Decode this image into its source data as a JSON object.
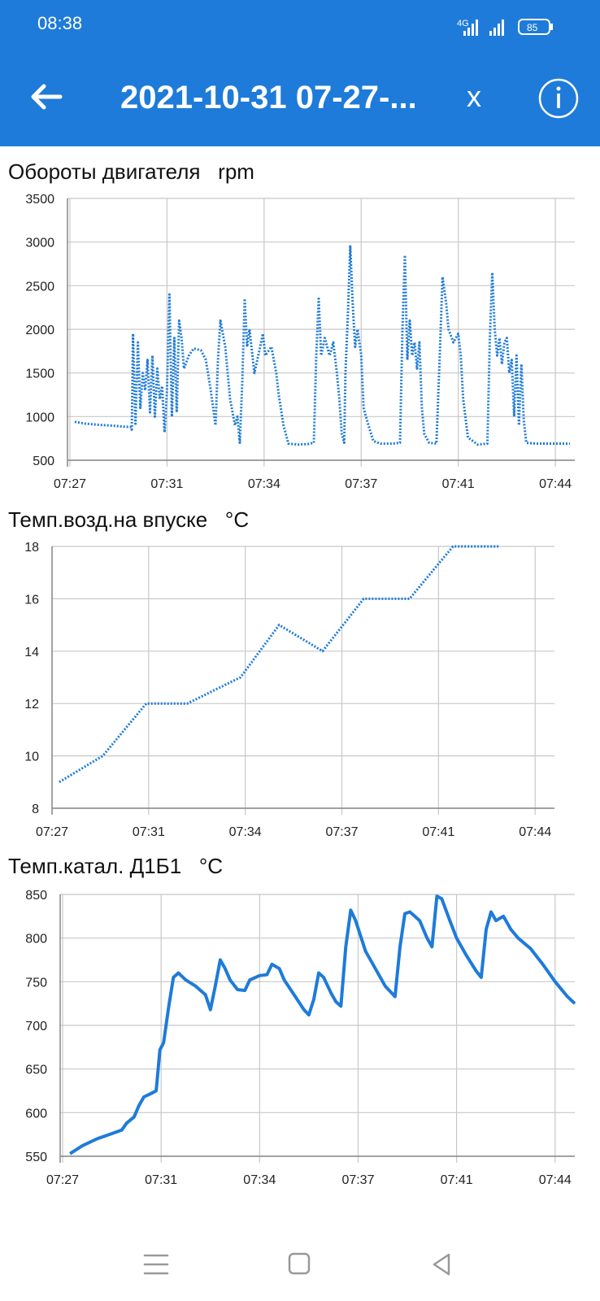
{
  "status": {
    "time": "08:38",
    "battery": "85",
    "network": "4G"
  },
  "header": {
    "title": "2021-10-31 07-27-...",
    "close_label": "x",
    "back_icon": "arrow-left-icon",
    "info_icon": "info-icon"
  },
  "colors": {
    "accent": "#1e7bd9",
    "series": "#1e7bd9",
    "grid": "#c8c8c8"
  },
  "chart_data": [
    {
      "type": "line",
      "title": "Обороты двигателя   rpm",
      "x_ticks": [
        "07:27",
        "07:31",
        "07:34",
        "07:37",
        "07:41",
        "07:44"
      ],
      "x_tick_minutes": [
        0,
        4,
        8,
        12,
        16,
        20
      ],
      "xlim_minutes": [
        -0.1,
        20.8
      ],
      "y_ticks": [
        500,
        1000,
        1500,
        2000,
        2500,
        3000,
        3500
      ],
      "ylim": [
        500,
        3500
      ],
      "grid": true,
      "style": "dotted",
      "series": [
        {
          "points": [
            [
              0.2,
              940
            ],
            [
              0.6,
              920
            ],
            [
              1.2,
              905
            ],
            [
              1.8,
              895
            ],
            [
              2.2,
              885
            ],
            [
              2.5,
              880
            ],
            [
              2.55,
              850
            ],
            [
              2.6,
              1950
            ],
            [
              2.7,
              900
            ],
            [
              2.8,
              1850
            ],
            [
              2.9,
              1100
            ],
            [
              3.0,
              1500
            ],
            [
              3.1,
              1300
            ],
            [
              3.2,
              1650
            ],
            [
              3.3,
              1050
            ],
            [
              3.4,
              1700
            ],
            [
              3.5,
              1000
            ],
            [
              3.6,
              1550
            ],
            [
              3.7,
              1200
            ],
            [
              3.8,
              1350
            ],
            [
              3.9,
              820
            ],
            [
              4.0,
              1300
            ],
            [
              4.1,
              2400
            ],
            [
              4.2,
              1000
            ],
            [
              4.3,
              1900
            ],
            [
              4.4,
              1050
            ],
            [
              4.5,
              2100
            ],
            [
              4.6,
              1900
            ],
            [
              4.7,
              1550
            ],
            [
              4.9,
              1700
            ],
            [
              5.1,
              1780
            ],
            [
              5.4,
              1760
            ],
            [
              5.6,
              1650
            ],
            [
              5.8,
              1300
            ],
            [
              6.0,
              900
            ],
            [
              6.1,
              1650
            ],
            [
              6.2,
              2100
            ],
            [
              6.4,
              1800
            ],
            [
              6.6,
              1200
            ],
            [
              6.8,
              900
            ],
            [
              6.9,
              1000
            ],
            [
              7.0,
              700
            ],
            [
              7.1,
              1400
            ],
            [
              7.2,
              2350
            ],
            [
              7.3,
              1800
            ],
            [
              7.4,
              2000
            ],
            [
              7.6,
              1500
            ],
            [
              7.8,
              1750
            ],
            [
              7.95,
              1950
            ],
            [
              8.05,
              1700
            ],
            [
              8.3,
              1800
            ],
            [
              8.5,
              1500
            ],
            [
              8.6,
              1250
            ],
            [
              8.8,
              900
            ],
            [
              9.0,
              690
            ],
            [
              9.4,
              680
            ],
            [
              9.8,
              685
            ],
            [
              10.05,
              700
            ],
            [
              10.15,
              1700
            ],
            [
              10.25,
              2350
            ],
            [
              10.35,
              1700
            ],
            [
              10.5,
              1900
            ],
            [
              10.7,
              1700
            ],
            [
              10.85,
              1850
            ],
            [
              11.0,
              1500
            ],
            [
              11.1,
              1200
            ],
            [
              11.2,
              800
            ],
            [
              11.3,
              700
            ],
            [
              11.35,
              1500
            ],
            [
              11.45,
              2150
            ],
            [
              11.55,
              2950
            ],
            [
              11.65,
              2300
            ],
            [
              11.75,
              1800
            ],
            [
              11.85,
              2000
            ],
            [
              12.0,
              1700
            ],
            [
              12.1,
              1100
            ],
            [
              12.3,
              900
            ],
            [
              12.5,
              720
            ],
            [
              12.8,
              690
            ],
            [
              13.3,
              690
            ],
            [
              13.6,
              700
            ],
            [
              13.7,
              2000
            ],
            [
              13.8,
              2850
            ],
            [
              13.9,
              1650
            ],
            [
              14.0,
              2100
            ],
            [
              14.1,
              1700
            ],
            [
              14.2,
              1850
            ],
            [
              14.3,
              1550
            ],
            [
              14.4,
              1850
            ],
            [
              14.5,
              1100
            ],
            [
              14.6,
              800
            ],
            [
              14.8,
              700
            ],
            [
              15.1,
              690
            ],
            [
              15.25,
              1800
            ],
            [
              15.35,
              2600
            ],
            [
              15.5,
              2300
            ],
            [
              15.6,
              2000
            ],
            [
              15.8,
              1850
            ],
            [
              16.0,
              1950
            ],
            [
              16.1,
              1700
            ],
            [
              16.2,
              1200
            ],
            [
              16.4,
              760
            ],
            [
              16.8,
              680
            ],
            [
              17.2,
              690
            ],
            [
              17.3,
              1900
            ],
            [
              17.4,
              2650
            ],
            [
              17.5,
              2000
            ],
            [
              17.6,
              1700
            ],
            [
              17.7,
              1900
            ],
            [
              17.8,
              1600
            ],
            [
              17.9,
              1850
            ],
            [
              18.0,
              1900
            ],
            [
              18.1,
              1500
            ],
            [
              18.2,
              1650
            ],
            [
              18.3,
              1000
            ],
            [
              18.4,
              1700
            ],
            [
              18.5,
              900
            ],
            [
              18.6,
              1600
            ],
            [
              18.7,
              950
            ],
            [
              18.8,
              700
            ],
            [
              19.2,
              690
            ],
            [
              19.7,
              690
            ],
            [
              20.2,
              690
            ],
            [
              20.6,
              690
            ]
          ]
        }
      ]
    },
    {
      "type": "line",
      "title": "Темп.возд.на впуске   °C",
      "x_ticks": [
        "07:27",
        "07:31",
        "07:34",
        "07:37",
        "07:41",
        "07:44"
      ],
      "x_tick_minutes": [
        0,
        4,
        8,
        12,
        16,
        20
      ],
      "xlim_minutes": [
        0,
        20.8
      ],
      "y_ticks": [
        8,
        10,
        12,
        14,
        16,
        18
      ],
      "ylim": [
        8,
        18
      ],
      "grid": true,
      "style": "dotted",
      "series": [
        {
          "points": [
            [
              0.3,
              9
            ],
            [
              2.1,
              10
            ],
            [
              3.9,
              12
            ],
            [
              5.6,
              12
            ],
            [
              7.8,
              13
            ],
            [
              9.4,
              15
            ],
            [
              11.2,
              14
            ],
            [
              12.9,
              16
            ],
            [
              14.8,
              16
            ],
            [
              16.6,
              18
            ],
            [
              18.5,
              18
            ]
          ]
        }
      ]
    },
    {
      "type": "line",
      "title": "Темп.катал. Д1Б1   °C",
      "x_ticks": [
        "07:27",
        "07:31",
        "07:34",
        "07:37",
        "07:41",
        "07:44"
      ],
      "x_tick_minutes": [
        0,
        4,
        8,
        12,
        16,
        20
      ],
      "xlim_minutes": [
        -0.1,
        20.8
      ],
      "y_ticks": [
        550,
        600,
        650,
        700,
        750,
        800,
        850
      ],
      "ylim": [
        550,
        850
      ],
      "grid": true,
      "style": "solid",
      "series": [
        {
          "points": [
            [
              0.3,
              553
            ],
            [
              0.8,
              562
            ],
            [
              1.4,
              570
            ],
            [
              2.0,
              576
            ],
            [
              2.4,
              580
            ],
            [
              2.6,
              588
            ],
            [
              2.9,
              595
            ],
            [
              3.1,
              608
            ],
            [
              3.3,
              618
            ],
            [
              3.6,
              622
            ],
            [
              3.8,
              625
            ],
            [
              3.95,
              672
            ],
            [
              4.1,
              680
            ],
            [
              4.3,
              720
            ],
            [
              4.5,
              755
            ],
            [
              4.7,
              760
            ],
            [
              5.0,
              752
            ],
            [
              5.4,
              745
            ],
            [
              5.8,
              735
            ],
            [
              6.0,
              718
            ],
            [
              6.2,
              745
            ],
            [
              6.4,
              775
            ],
            [
              6.6,
              765
            ],
            [
              6.8,
              752
            ],
            [
              7.1,
              741
            ],
            [
              7.4,
              740
            ],
            [
              7.6,
              752
            ],
            [
              8.0,
              757
            ],
            [
              8.3,
              758
            ],
            [
              8.5,
              770
            ],
            [
              8.8,
              765
            ],
            [
              9.0,
              752
            ],
            [
              9.4,
              735
            ],
            [
              9.8,
              718
            ],
            [
              10.0,
              712
            ],
            [
              10.2,
              730
            ],
            [
              10.4,
              760
            ],
            [
              10.6,
              755
            ],
            [
              10.9,
              737
            ],
            [
              11.1,
              727
            ],
            [
              11.3,
              722
            ],
            [
              11.5,
              790
            ],
            [
              11.7,
              832
            ],
            [
              11.9,
              820
            ],
            [
              12.3,
              785
            ],
            [
              12.7,
              765
            ],
            [
              13.1,
              745
            ],
            [
              13.5,
              733
            ],
            [
              13.7,
              790
            ],
            [
              13.9,
              828
            ],
            [
              14.1,
              830
            ],
            [
              14.3,
              825
            ],
            [
              14.5,
              820
            ],
            [
              14.8,
              800
            ],
            [
              15.0,
              790
            ],
            [
              15.2,
              848
            ],
            [
              15.4,
              845
            ],
            [
              15.7,
              822
            ],
            [
              16.0,
              800
            ],
            [
              16.4,
              780
            ],
            [
              16.8,
              762
            ],
            [
              17.0,
              755
            ],
            [
              17.2,
              810
            ],
            [
              17.4,
              830
            ],
            [
              17.6,
              820
            ],
            [
              17.9,
              825
            ],
            [
              18.2,
              810
            ],
            [
              18.5,
              800
            ],
            [
              19.0,
              788
            ],
            [
              19.5,
              770
            ],
            [
              20.0,
              750
            ],
            [
              20.5,
              733
            ],
            [
              20.8,
              725
            ]
          ]
        }
      ]
    }
  ]
}
